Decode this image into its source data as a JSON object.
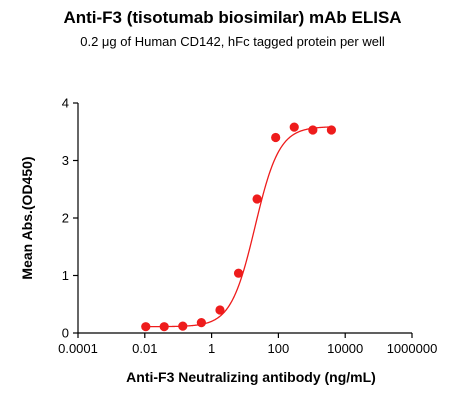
{
  "chart_data": {
    "type": "scatter",
    "title": "Anti-F3 (tisotumab biosimilar) mAb ELISA",
    "subtitle": "0.2 μg of Human CD142, hFc tagged protein per well",
    "xlabel": "Anti-F3 Neutralizing antibody (ng/mL)",
    "ylabel": "Mean Abs.(OD450)",
    "x_scale": "log",
    "xlim": [
      0.0001,
      1000000
    ],
    "ylim": [
      0,
      4
    ],
    "x_ticks": [
      0.0001,
      0.01,
      1,
      100,
      10000,
      1000000
    ],
    "x_tick_labels": [
      "0.0001",
      "0.01",
      "1",
      "100",
      "10000",
      "1000000"
    ],
    "y_ticks": [
      0,
      1,
      2,
      3,
      4
    ],
    "y_tick_labels": [
      "0",
      "1",
      "2",
      "3",
      "4"
    ],
    "grid": false,
    "colors": {
      "series": "#ee1c1c"
    },
    "series": [
      {
        "points": [
          [
            0.0107,
            0.11
          ],
          [
            0.0381,
            0.11
          ],
          [
            0.1372,
            0.12
          ],
          [
            0.494,
            0.18
          ],
          [
            1.78,
            0.4
          ],
          [
            6.4,
            1.04
          ],
          [
            23,
            2.33
          ],
          [
            82.9,
            3.4
          ],
          [
            298,
            3.58
          ],
          [
            1074,
            3.53
          ],
          [
            3867,
            3.53
          ]
        ],
        "fit": {
          "bottom": 0.11,
          "top": 3.59,
          "ec50": 20,
          "hill": 1.2
        }
      }
    ]
  }
}
